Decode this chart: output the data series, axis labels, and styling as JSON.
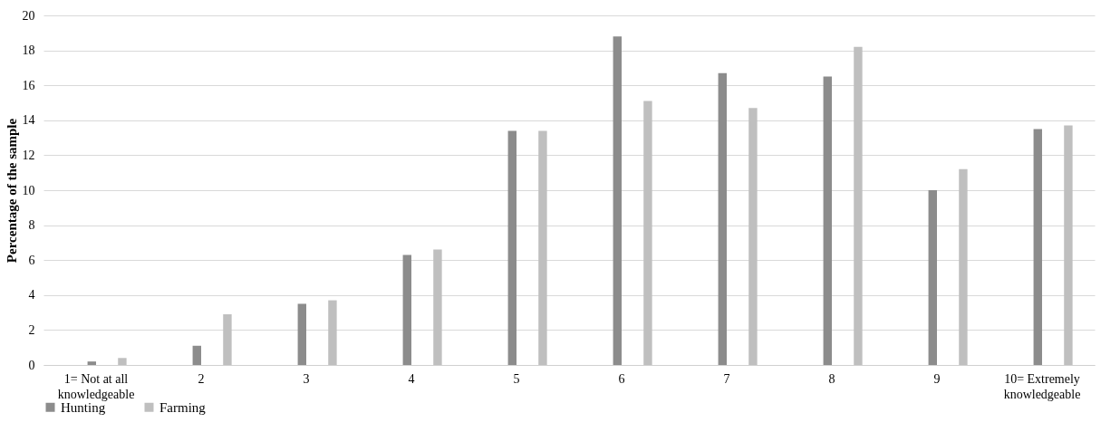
{
  "chart_data": {
    "type": "bar",
    "ylabel": "Percentage of the sample",
    "categories": [
      "1= Not at all\nknowledgeable",
      "2",
      "3",
      "4",
      "5",
      "6",
      "7",
      "8",
      "9",
      "10= Extremely\nknowledgeable"
    ],
    "series": [
      {
        "name": "Hunting",
        "color": "#8c8c8c",
        "values": [
          0.2,
          1.1,
          3.5,
          6.3,
          13.4,
          18.8,
          16.7,
          16.5,
          10.0,
          13.5
        ]
      },
      {
        "name": "Farming",
        "color": "#bfbfbf",
        "values": [
          0.4,
          2.9,
          3.7,
          6.6,
          13.4,
          15.1,
          14.7,
          18.2,
          11.2,
          13.7
        ]
      }
    ],
    "ylim": [
      0,
      20
    ],
    "yticks": [
      0,
      2,
      4,
      6,
      8,
      10,
      12,
      14,
      16,
      18,
      20
    ],
    "grid": "y",
    "legend": "bottom"
  }
}
